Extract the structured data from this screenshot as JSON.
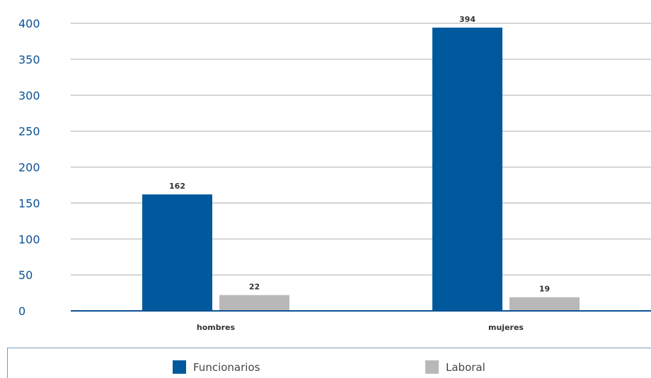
{
  "chart_data": {
    "type": "bar",
    "categories": [
      "hombres",
      "mujeres"
    ],
    "series": [
      {
        "name": "Funcionarios",
        "values": [
          162,
          394
        ],
        "color": "#00599c"
      },
      {
        "name": "Laboral",
        "values": [
          22,
          19
        ],
        "color": "#b8b8b8"
      }
    ],
    "ylim": [
      0,
      400
    ],
    "yticks": [
      "0",
      "50",
      "100",
      "150",
      "200",
      "250",
      "300",
      "350",
      "400"
    ],
    "grid": true,
    "legend_position": "bottom"
  }
}
